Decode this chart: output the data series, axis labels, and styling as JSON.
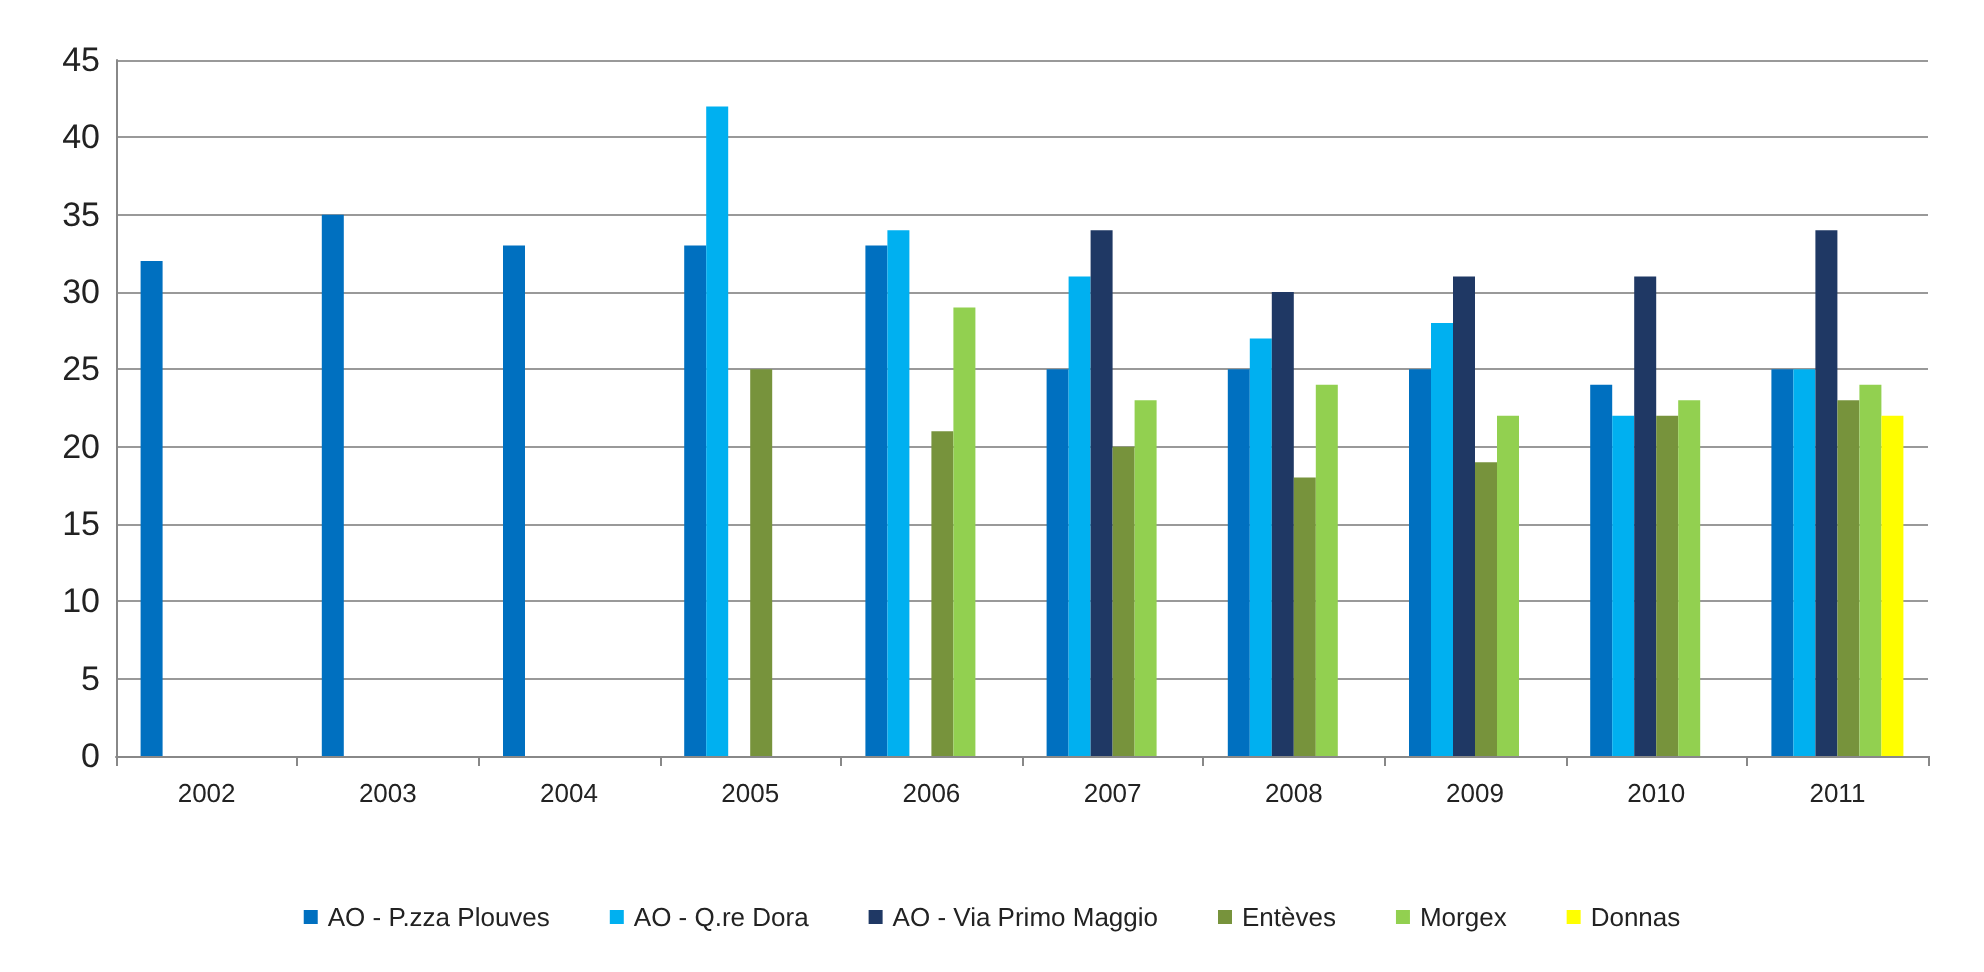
{
  "chart_data": {
    "type": "bar",
    "categories": [
      "2002",
      "2003",
      "2004",
      "2005",
      "2006",
      "2007",
      "2008",
      "2009",
      "2010",
      "2011"
    ],
    "series": [
      {
        "name": "AO - P.zza Plouves",
        "color": "#0070c0",
        "values": [
          32,
          35,
          33,
          33,
          33,
          25,
          25,
          25,
          24,
          25
        ]
      },
      {
        "name": "AO - Q.re Dora",
        "color": "#00b0f0",
        "values": [
          null,
          null,
          null,
          42,
          34,
          31,
          27,
          28,
          22,
          25
        ]
      },
      {
        "name": "AO - Via Primo Maggio",
        "color": "#1f3864",
        "values": [
          null,
          null,
          null,
          null,
          null,
          34,
          30,
          31,
          31,
          34
        ]
      },
      {
        "name": "Entèves",
        "color": "#77933c",
        "values": [
          null,
          null,
          null,
          25,
          21,
          20,
          18,
          19,
          22,
          23
        ]
      },
      {
        "name": "Morgex",
        "color": "#92d050",
        "values": [
          null,
          null,
          null,
          null,
          29,
          23,
          24,
          22,
          23,
          24
        ]
      },
      {
        "name": "Donnas",
        "color": "#ffff00",
        "values": [
          null,
          null,
          null,
          null,
          null,
          null,
          null,
          null,
          null,
          22
        ]
      }
    ],
    "ylim": [
      0,
      45
    ],
    "yticks": [
      0,
      5,
      10,
      15,
      20,
      25,
      30,
      35,
      40,
      45
    ],
    "grid": "y",
    "legend": "bottom"
  }
}
